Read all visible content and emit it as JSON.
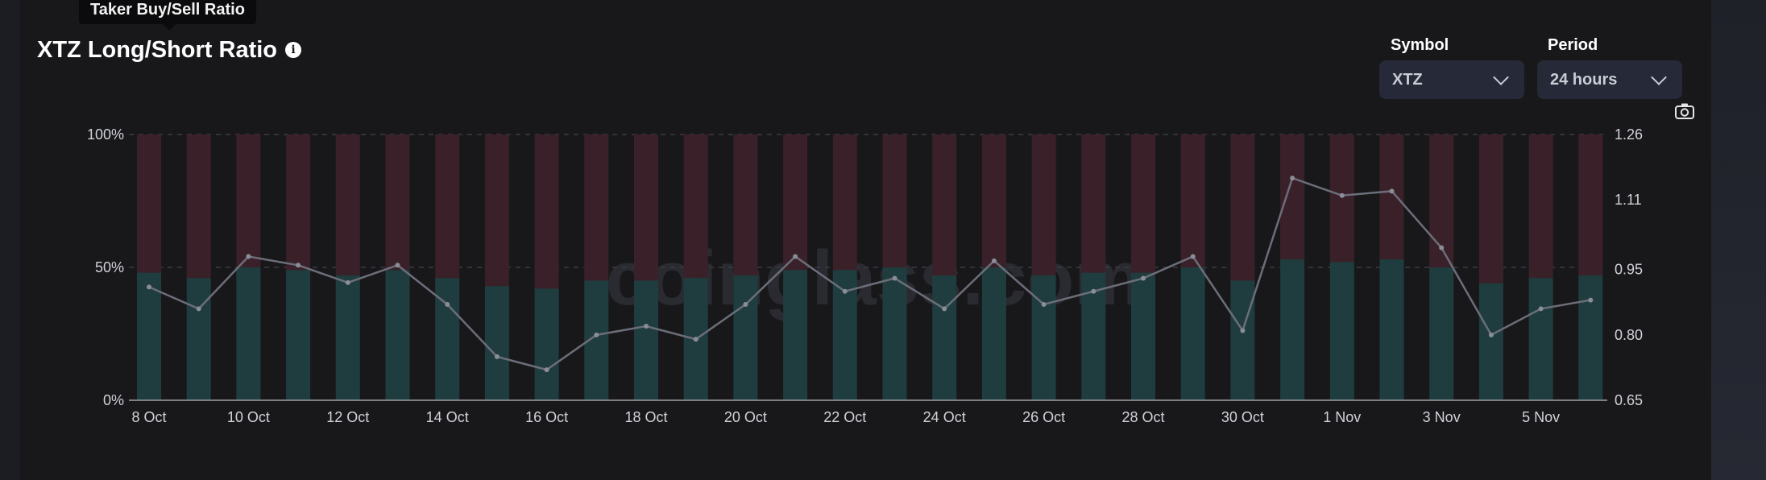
{
  "tooltip": {
    "text": "Taker Buy/Sell Ratio"
  },
  "header": {
    "title": "XTZ Long/Short Ratio",
    "info_icon": "info-icon"
  },
  "controls": {
    "symbol": {
      "label": "Symbol",
      "value": "XTZ"
    },
    "period": {
      "label": "Period",
      "value": "24 hours"
    },
    "camera_icon": "camera-icon"
  },
  "watermark": "coinglass.com",
  "colors": {
    "long": "#1f3d3e",
    "short": "#3a2129",
    "line": "#6b6e79",
    "grid": "#3a3b42"
  },
  "chart_data": {
    "type": "bar",
    "categories": [
      "8 Oct",
      "9 Oct",
      "10 Oct",
      "11 Oct",
      "12 Oct",
      "13 Oct",
      "14 Oct",
      "15 Oct",
      "16 Oct",
      "17 Oct",
      "18 Oct",
      "19 Oct",
      "20 Oct",
      "21 Oct",
      "22 Oct",
      "23 Oct",
      "24 Oct",
      "25 Oct",
      "26 Oct",
      "27 Oct",
      "28 Oct",
      "29 Oct",
      "30 Oct",
      "31 Oct",
      "1 Nov",
      "2 Nov",
      "3 Nov",
      "4 Nov",
      "5 Nov",
      "6 Nov"
    ],
    "x_tick_labels": [
      "8 Oct",
      "10 Oct",
      "12 Oct",
      "14 Oct",
      "16 Oct",
      "18 Oct",
      "20 Oct",
      "22 Oct",
      "24 Oct",
      "26 Oct",
      "28 Oct",
      "30 Oct",
      "1 Nov",
      "3 Nov",
      "5 Nov"
    ],
    "series": [
      {
        "values": [
          48,
          46,
          50,
          49,
          47,
          49,
          46,
          43,
          42,
          45,
          45,
          46,
          47,
          49,
          49,
          50,
          47,
          50,
          47,
          48,
          48,
          50,
          45,
          53,
          52,
          53,
          50,
          44,
          46,
          47
        ]
      },
      {
        "values": [
          52,
          54,
          50,
          51,
          53,
          51,
          54,
          57,
          58,
          55,
          55,
          54,
          53,
          51,
          51,
          50,
          53,
          50,
          53,
          52,
          52,
          50,
          55,
          47,
          48,
          47,
          50,
          56,
          54,
          53
        ]
      },
      {
        "values": [
          0.91,
          0.86,
          0.98,
          0.96,
          0.92,
          0.96,
          0.87,
          0.75,
          0.72,
          0.8,
          0.82,
          0.79,
          0.87,
          0.98,
          0.9,
          0.93,
          0.86,
          0.97,
          0.87,
          0.9,
          0.93,
          0.98,
          0.81,
          1.16,
          1.12,
          1.13,
          1.0,
          0.8,
          0.86,
          0.88
        ]
      }
    ],
    "y_left": {
      "ticks": [
        "0%",
        "50%",
        "100%"
      ],
      "range": [
        0,
        100
      ]
    },
    "y_right": {
      "ticks": [
        "0.65",
        "0.80",
        "0.95",
        "1.11",
        "1.26"
      ],
      "range": [
        0.65,
        1.26
      ]
    }
  }
}
